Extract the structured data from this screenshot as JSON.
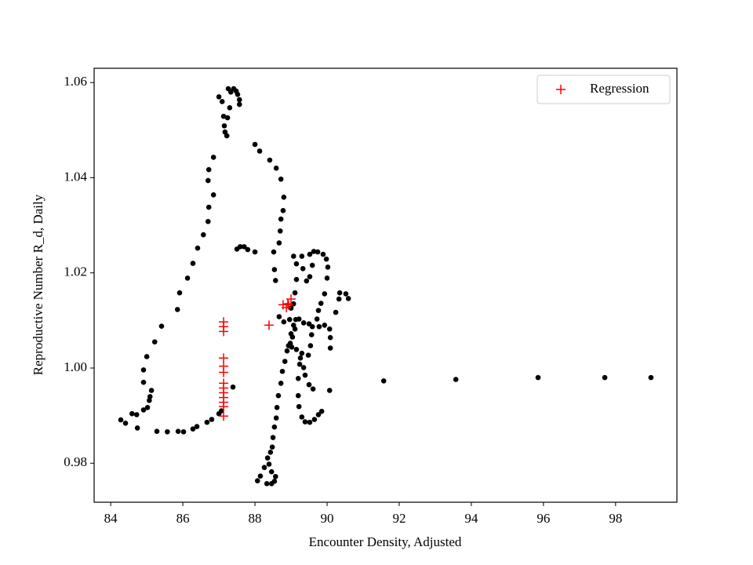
{
  "chart_data": {
    "type": "scatter",
    "x_label": "Encounter Density, Adjusted",
    "y_label": "Reproductive Number R_d, Daily",
    "xlim": [
      83.54,
      99.7
    ],
    "ylim": [
      0.9718,
      1.063
    ],
    "xticks": [
      84,
      86,
      88,
      90,
      92,
      94,
      96,
      98
    ],
    "yticks": [
      0.98,
      {
        "value": 1,
        "label": "1.00"
      },
      1.02,
      1.04,
      1.06
    ],
    "legend": "upper right",
    "series": [
      {
        "color": "#000000",
        "marker": "dot",
        "x": [
          84.28,
          84.41,
          84.59,
          84.72,
          84.74,
          84.91,
          85.02,
          85.07,
          85.09,
          85.13,
          84.91,
          84.91,
          85.0,
          85.22,
          85.41,
          85.85,
          85.91,
          86.13,
          86.28,
          86.41,
          86.57,
          86.7,
          86.72,
          86.85,
          86.7,
          86.72,
          86.85,
          87.0,
          87.09,
          87.13,
          87.15,
          87.17,
          87.22,
          87.26,
          87.33,
          87.41,
          87.48,
          87.52,
          87.57,
          87.57,
          87.3,
          87.24,
          88.0,
          88.13,
          88.41,
          88.59,
          88.72,
          88.8,
          88.78,
          88.72,
          88.7,
          88.67,
          88.52,
          88.54,
          88.57,
          87.5,
          87.59,
          87.7,
          87.8,
          88.0,
          85.87,
          86.02,
          86.28,
          86.39,
          86.67,
          86.8,
          87.0,
          87.07,
          87.39,
          85.28,
          85.57,
          88.07,
          88.15,
          88.26,
          88.35,
          88.43,
          88.48,
          88.5,
          88.54,
          88.59,
          88.61,
          88.65,
          88.72,
          88.76,
          88.83,
          88.89,
          88.98,
          89.04,
          89.11,
          89.13,
          88.33,
          88.46,
          88.54,
          88.57,
          88.46,
          88.39,
          89.0,
          88.67,
          88.8,
          88.96,
          89.22,
          89.35,
          89.5,
          89.59,
          89.57,
          89.54,
          89.48,
          89.3,
          89.24,
          89.2,
          89.2,
          89.22,
          89.3,
          89.39,
          89.52,
          89.65,
          89.76,
          89.85,
          89.61,
          89.5,
          89.39,
          89.35,
          89.26,
          89.15,
          89.02,
          88.93,
          89.0,
          89.07,
          89.07,
          89.11,
          89.15,
          89.15,
          89.07,
          89.3,
          89.33,
          89.43,
          89.52,
          89.59,
          89.52,
          89.63,
          89.74,
          89.89,
          89.98,
          90.02,
          90.0,
          89.93,
          89.83,
          89.76,
          89.72,
          89.78,
          89.93,
          90.07,
          90.09,
          90.09,
          90.24,
          90.35,
          90.33,
          90.52,
          90.59,
          90.07,
          91.57,
          93.57,
          95.85,
          97.7,
          98.98
        ],
        "y": [
          0.9891,
          0.9884,
          0.9904,
          0.9902,
          0.9874,
          0.9912,
          0.9917,
          0.9932,
          0.994,
          0.9953,
          0.997,
          0.9996,
          1.0024,
          1.0055,
          1.0088,
          1.0123,
          1.0158,
          1.0189,
          1.022,
          1.0252,
          1.028,
          1.0308,
          1.0338,
          1.0364,
          1.0394,
          1.0417,
          1.0443,
          1.057,
          1.056,
          1.0529,
          1.0509,
          1.0496,
          1.0488,
          1.0587,
          1.058,
          1.0587,
          1.0582,
          1.0575,
          1.0564,
          1.0554,
          1.0547,
          1.0526,
          1.047,
          1.0456,
          1.0437,
          1.042,
          1.0397,
          1.0359,
          1.0331,
          1.0313,
          1.0288,
          1.0263,
          1.0244,
          1.0207,
          1.0184,
          1.025,
          1.0255,
          1.0255,
          1.0249,
          1.0244,
          0.9867,
          0.9866,
          0.9872,
          0.9877,
          0.9886,
          0.9892,
          0.9904,
          0.991,
          0.996,
          0.9867,
          0.9866,
          0.9763,
          0.9773,
          0.9791,
          0.9811,
          0.9823,
          0.9834,
          0.9854,
          0.9876,
          0.9895,
          0.9917,
          0.9942,
          0.9968,
          0.9993,
          1.0014,
          1.0036,
          1.0052,
          1.0065,
          1.0082,
          1.0102,
          0.9757,
          0.9757,
          0.9762,
          0.9772,
          0.9782,
          0.9798,
          1.0126,
          1.0108,
          1.0097,
          1.0102,
          1.0103,
          1.0095,
          1.0093,
          1.0087,
          1.007,
          1.0047,
          1.0027,
          1.0031,
          1.0008,
          0.9978,
          0.9942,
          0.9919,
          0.9897,
          0.9887,
          0.9886,
          0.9892,
          0.9902,
          0.9909,
          0.9956,
          0.9965,
          0.9985,
          1.0001,
          1.0021,
          1.0039,
          1.0044,
          1.0047,
          1.0072,
          1.009,
          1.0135,
          1.0158,
          1.0186,
          1.0219,
          1.0235,
          1.0235,
          1.0209,
          1.0183,
          1.0192,
          1.0216,
          1.0239,
          1.0245,
          1.0244,
          1.0239,
          1.0229,
          1.0212,
          1.0189,
          1.0156,
          1.0136,
          1.0121,
          1.0103,
          1.0087,
          1.009,
          1.0082,
          1.0064,
          1.0042,
          1.0117,
          1.0158,
          1.0145,
          1.0156,
          1.0146,
          0.9953,
          0.9973,
          0.9976,
          0.998,
          0.998,
          0.998
        ]
      },
      {
        "name": "Regression",
        "color": "#ff0000",
        "marker": "plus",
        "x": [
          87.13,
          87.13,
          87.13,
          87.13,
          87.13,
          87.13,
          87.13,
          87.13,
          87.13,
          87.13,
          87.13,
          87.13,
          87.13,
          88.39,
          88.78,
          88.87,
          88.93,
          89.0,
          88.91
        ],
        "y": [
          1.0097,
          1.0087,
          1.0077,
          1.0021,
          1.0004,
          0.9991,
          0.9968,
          0.9958,
          0.9948,
          0.9938,
          0.9928,
          0.9919,
          0.9899,
          1.009,
          1.0133,
          1.0127,
          1.0133,
          1.0145,
          1.0135
        ]
      }
    ]
  }
}
